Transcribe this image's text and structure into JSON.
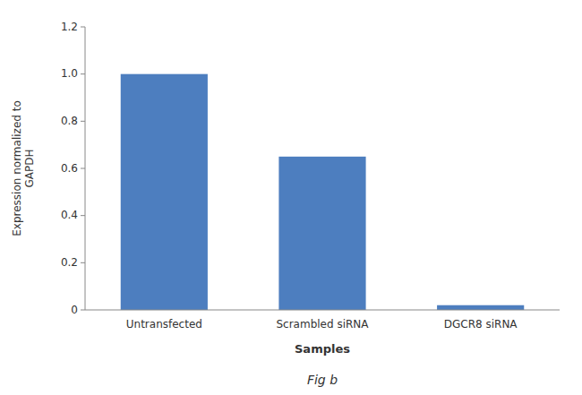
{
  "chart_data": {
    "type": "bar",
    "categories": [
      "Untransfected",
      "Scrambled siRNA",
      "DGCR8 siRNA"
    ],
    "values": [
      1.0,
      0.65,
      0.02
    ],
    "color": "#4d7ebf",
    "ylim": [
      0,
      1.2
    ],
    "yticks": [
      0,
      0.2,
      0.4,
      0.6,
      0.8,
      {
        "value": 1.0,
        "label": "1.0"
      },
      1.2
    ],
    "ylabel": "Expression normalized to\nGAPDH",
    "xlabel": "Samples",
    "annotations": [
      "Fig b"
    ],
    "grid": false
  }
}
